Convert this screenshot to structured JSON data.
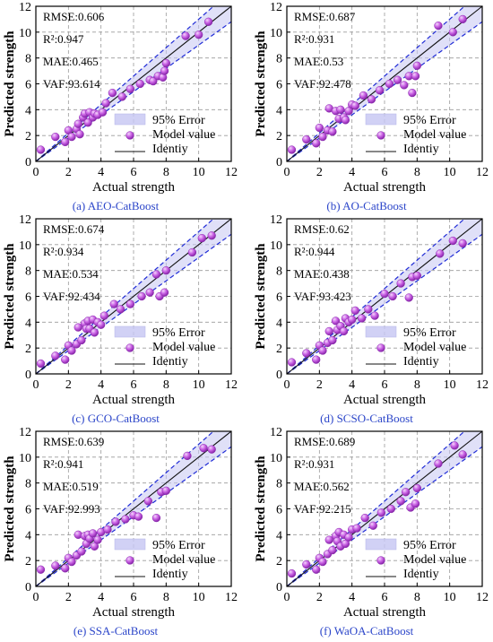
{
  "chart_data": [
    {
      "type": "scatter",
      "caption": "(a) AEO-CatBoost",
      "xlabel": "Actual strength",
      "ylabel": "Predicted strength",
      "xlim": [
        0,
        12
      ],
      "ylim": [
        0,
        12
      ],
      "xticks": [
        0,
        2,
        4,
        6,
        8,
        10,
        12
      ],
      "yticks": [
        0,
        2,
        4,
        6,
        8,
        10,
        12
      ],
      "grid": true,
      "metrics": [
        "RMSE:0.606",
        "R²:0.947",
        "MAE:0.465",
        "VAF:93.614"
      ],
      "legend": {
        "placement": "lower-right",
        "entries": [
          "95% Error",
          "Model value",
          "Identiy"
        ]
      },
      "points": [
        [
          0.3,
          0.9
        ],
        [
          1.2,
          1.9
        ],
        [
          1.8,
          1.5
        ],
        [
          2.0,
          2.4
        ],
        [
          2.2,
          1.9
        ],
        [
          2.5,
          2.5
        ],
        [
          2.6,
          2.9
        ],
        [
          2.7,
          2.1
        ],
        [
          2.9,
          3.4
        ],
        [
          3.0,
          3.7
        ],
        [
          3.2,
          3.0
        ],
        [
          3.3,
          3.8
        ],
        [
          3.5,
          3.4
        ],
        [
          3.6,
          3.7
        ],
        [
          3.8,
          3.6
        ],
        [
          4.1,
          3.8
        ],
        [
          4.3,
          4.5
        ],
        [
          4.7,
          5.3
        ],
        [
          5.3,
          5.0
        ],
        [
          5.8,
          5.6
        ],
        [
          6.4,
          6.0
        ],
        [
          7.0,
          6.3
        ],
        [
          7.2,
          6.2
        ],
        [
          7.5,
          6.6
        ],
        [
          7.8,
          6.5
        ],
        [
          7.9,
          7.0
        ],
        [
          8.0,
          7.6
        ],
        [
          9.2,
          9.7
        ],
        [
          10.0,
          9.8
        ],
        [
          10.6,
          10.8
        ]
      ]
    },
    {
      "type": "scatter",
      "caption": "(b) AO-CatBoost",
      "xlabel": "Actual strength",
      "ylabel": "Predicted strength",
      "xlim": [
        0,
        12
      ],
      "ylim": [
        0,
        12
      ],
      "xticks": [
        0,
        2,
        4,
        6,
        8,
        10,
        12
      ],
      "yticks": [
        0,
        2,
        4,
        6,
        8,
        10,
        12
      ],
      "grid": true,
      "metrics": [
        "RMSE:0.687",
        "R²:0.931",
        "MAE:0.53",
        "VAF:92.478"
      ],
      "legend": {
        "placement": "lower-right",
        "entries": [
          "95% Error",
          "Model value",
          "Identiy"
        ]
      },
      "points": [
        [
          0.3,
          0.9
        ],
        [
          1.2,
          1.7
        ],
        [
          1.8,
          1.4
        ],
        [
          2.0,
          2.6
        ],
        [
          2.2,
          1.9
        ],
        [
          2.5,
          2.4
        ],
        [
          2.6,
          4.1
        ],
        [
          2.8,
          2.3
        ],
        [
          3.0,
          3.9
        ],
        [
          3.2,
          3.3
        ],
        [
          3.3,
          4.0
        ],
        [
          3.5,
          3.4
        ],
        [
          3.6,
          3.2
        ],
        [
          3.8,
          3.9
        ],
        [
          4.0,
          4.4
        ],
        [
          4.2,
          4.3
        ],
        [
          4.7,
          5.1
        ],
        [
          5.2,
          4.8
        ],
        [
          5.7,
          5.5
        ],
        [
          6.3,
          6.0
        ],
        [
          6.8,
          6.3
        ],
        [
          7.2,
          5.9
        ],
        [
          7.5,
          6.6
        ],
        [
          7.7,
          5.3
        ],
        [
          7.9,
          6.6
        ],
        [
          8.0,
          7.4
        ],
        [
          9.3,
          10.5
        ],
        [
          10.2,
          10.0
        ],
        [
          10.8,
          11.0
        ]
      ]
    },
    {
      "type": "scatter",
      "caption": "(c) GCO-CatBoost",
      "xlabel": "Actual strength",
      "ylabel": "Predicted strength",
      "xlim": [
        0,
        12
      ],
      "ylim": [
        0,
        12
      ],
      "xticks": [
        0,
        2,
        4,
        6,
        8,
        10,
        12
      ],
      "yticks": [
        0,
        2,
        4,
        6,
        8,
        10,
        12
      ],
      "grid": true,
      "metrics": [
        "RMSE:0.674",
        "R²:0.934",
        "MAE:0.534",
        "VAF:92.434"
      ],
      "legend": {
        "placement": "lower-right",
        "entries": [
          "95% Error",
          "Model value",
          "Identiy"
        ]
      },
      "points": [
        [
          0.3,
          0.8
        ],
        [
          1.2,
          1.4
        ],
        [
          1.8,
          1.1
        ],
        [
          2.0,
          2.2
        ],
        [
          2.2,
          1.8
        ],
        [
          2.5,
          2.3
        ],
        [
          2.6,
          3.6
        ],
        [
          2.8,
          2.6
        ],
        [
          3.0,
          3.9
        ],
        [
          3.1,
          3.5
        ],
        [
          3.2,
          4.1
        ],
        [
          3.3,
          3.5
        ],
        [
          3.5,
          4.2
        ],
        [
          3.6,
          3.2
        ],
        [
          3.8,
          4.0
        ],
        [
          4.0,
          3.8
        ],
        [
          4.2,
          4.5
        ],
        [
          4.8,
          5.4
        ],
        [
          5.2,
          5.0
        ],
        [
          5.8,
          5.4
        ],
        [
          6.5,
          6.0
        ],
        [
          7.0,
          6.3
        ],
        [
          7.4,
          7.7
        ],
        [
          7.6,
          6.0
        ],
        [
          7.9,
          6.3
        ],
        [
          8.0,
          8.0
        ],
        [
          9.6,
          9.4
        ],
        [
          10.2,
          10.5
        ],
        [
          10.8,
          10.7
        ]
      ]
    },
    {
      "type": "scatter",
      "caption": "(d) SCSO-CatBoost",
      "xlabel": "Actual strength",
      "ylabel": "Predicted strength",
      "xlim": [
        0,
        12
      ],
      "ylim": [
        0,
        12
      ],
      "xticks": [
        0,
        2,
        4,
        6,
        8,
        10,
        12
      ],
      "yticks": [
        0,
        2,
        4,
        6,
        8,
        10,
        12
      ],
      "grid": true,
      "metrics": [
        "RMSE:0.62",
        "R²:0.944",
        "MAE:0.438",
        "VAF:93.423"
      ],
      "legend": {
        "placement": "lower-right",
        "entries": [
          "95% Error",
          "Model value",
          "Identiy"
        ]
      },
      "points": [
        [
          0.3,
          0.9
        ],
        [
          1.2,
          1.6
        ],
        [
          1.8,
          1.1
        ],
        [
          2.0,
          2.2
        ],
        [
          2.2,
          1.8
        ],
        [
          2.5,
          2.4
        ],
        [
          2.6,
          3.3
        ],
        [
          2.8,
          2.6
        ],
        [
          3.0,
          4.1
        ],
        [
          3.1,
          3.4
        ],
        [
          3.3,
          3.7
        ],
        [
          3.5,
          3.3
        ],
        [
          3.6,
          4.3
        ],
        [
          3.8,
          4.0
        ],
        [
          4.0,
          4.2
        ],
        [
          4.2,
          4.9
        ],
        [
          4.6,
          4.3
        ],
        [
          5.0,
          5.0
        ],
        [
          5.4,
          4.5
        ],
        [
          6.0,
          6.2
        ],
        [
          6.5,
          6.0
        ],
        [
          7.0,
          7.0
        ],
        [
          7.5,
          5.9
        ],
        [
          7.7,
          7.5
        ],
        [
          8.0,
          7.6
        ],
        [
          9.4,
          9.3
        ],
        [
          10.2,
          10.3
        ],
        [
          10.8,
          10.1
        ]
      ]
    },
    {
      "type": "scatter",
      "caption": "(e) SSA-CatBoost",
      "xlabel": "Actual strength",
      "ylabel": "Predicted strength",
      "xlim": [
        0,
        12
      ],
      "ylim": [
        0,
        12
      ],
      "xticks": [
        0,
        2,
        4,
        6,
        8,
        10,
        12
      ],
      "yticks": [
        0,
        2,
        4,
        6,
        8,
        10,
        12
      ],
      "grid": true,
      "metrics": [
        "RMSE:0.639",
        "R²:0.941",
        "MAE:0.519",
        "VAF:92.993"
      ],
      "legend": {
        "placement": "lower-right",
        "entries": [
          "95% Error",
          "Model value",
          "Identiy"
        ]
      },
      "points": [
        [
          0.3,
          1.3
        ],
        [
          1.2,
          1.6
        ],
        [
          1.8,
          1.4
        ],
        [
          2.0,
          2.2
        ],
        [
          2.2,
          1.9
        ],
        [
          2.5,
          2.4
        ],
        [
          2.6,
          4.0
        ],
        [
          2.8,
          2.7
        ],
        [
          3.0,
          3.9
        ],
        [
          3.1,
          3.3
        ],
        [
          3.2,
          4.0
        ],
        [
          3.3,
          3.7
        ],
        [
          3.5,
          4.1
        ],
        [
          3.6,
          3.1
        ],
        [
          3.8,
          3.6
        ],
        [
          4.0,
          4.2
        ],
        [
          4.4,
          4.4
        ],
        [
          4.9,
          5.0
        ],
        [
          5.5,
          5.2
        ],
        [
          6.0,
          5.5
        ],
        [
          6.3,
          5.4
        ],
        [
          6.9,
          6.6
        ],
        [
          7.4,
          5.3
        ],
        [
          7.7,
          7.3
        ],
        [
          8.0,
          7.4
        ],
        [
          9.3,
          10.1
        ],
        [
          10.3,
          10.7
        ],
        [
          10.8,
          10.6
        ]
      ]
    },
    {
      "type": "scatter",
      "caption": "(f) WaOA-CatBoost",
      "xlabel": "Actual strength",
      "ylabel": "Predicted strength",
      "xlim": [
        0,
        12
      ],
      "ylim": [
        0,
        12
      ],
      "xticks": [
        0,
        2,
        4,
        6,
        8,
        10,
        12
      ],
      "yticks": [
        0,
        2,
        4,
        6,
        8,
        10,
        12
      ],
      "grid": true,
      "metrics": [
        "RMSE:0.689",
        "R²:0.931",
        "MAE:0.562",
        "VAF:92.215"
      ],
      "legend": {
        "placement": "lower-right",
        "entries": [
          "95% Error",
          "Model value",
          "Identiy"
        ]
      },
      "points": [
        [
          0.3,
          1.0
        ],
        [
          1.2,
          1.7
        ],
        [
          1.8,
          1.3
        ],
        [
          2.0,
          2.2
        ],
        [
          2.2,
          1.9
        ],
        [
          2.5,
          2.5
        ],
        [
          2.6,
          3.6
        ],
        [
          2.8,
          2.8
        ],
        [
          3.0,
          3.9
        ],
        [
          3.1,
          3.5
        ],
        [
          3.2,
          4.2
        ],
        [
          3.3,
          3.1
        ],
        [
          3.5,
          4.0
        ],
        [
          3.6,
          3.3
        ],
        [
          3.8,
          3.8
        ],
        [
          4.0,
          4.4
        ],
        [
          4.3,
          4.5
        ],
        [
          4.8,
          5.3
        ],
        [
          5.3,
          4.7
        ],
        [
          5.8,
          5.7
        ],
        [
          6.4,
          6.0
        ],
        [
          7.0,
          6.6
        ],
        [
          7.3,
          7.3
        ],
        [
          7.6,
          6.1
        ],
        [
          7.9,
          6.4
        ],
        [
          8.0,
          7.6
        ],
        [
          9.3,
          9.5
        ],
        [
          10.3,
          10.9
        ],
        [
          10.8,
          10.2
        ]
      ]
    }
  ]
}
